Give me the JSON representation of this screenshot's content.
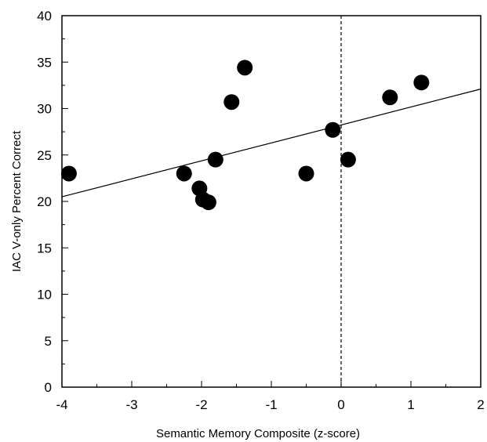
{
  "chart_data": {
    "type": "scatter",
    "title": "",
    "xlabel": "Semantic Memory Composite (z-score)",
    "ylabel": "IAC V-only Percent Correct",
    "xlim": [
      -4,
      2
    ],
    "ylim": [
      0,
      40
    ],
    "xticks": [
      "-4",
      "-3",
      "-2",
      "-1",
      "0",
      "1",
      "2"
    ],
    "yticks": [
      "0",
      "5",
      "10",
      "15",
      "20",
      "25",
      "30",
      "35",
      "40"
    ],
    "grid": false,
    "legend": "none",
    "marker_color": "#000000",
    "reference_line": {
      "x": 0,
      "style": "dashed"
    },
    "regression_line": {
      "x": [
        -4,
        2
      ],
      "y": [
        20.5,
        32.1
      ]
    },
    "points": [
      {
        "x": -3.9,
        "y": 23.0
      },
      {
        "x": -2.25,
        "y": 23.0
      },
      {
        "x": -2.03,
        "y": 21.4
      },
      {
        "x": -1.98,
        "y": 20.2
      },
      {
        "x": -1.9,
        "y": 19.9
      },
      {
        "x": -1.8,
        "y": 24.5
      },
      {
        "x": -1.57,
        "y": 30.7
      },
      {
        "x": -1.38,
        "y": 34.4
      },
      {
        "x": -0.5,
        "y": 23.0
      },
      {
        "x": -0.12,
        "y": 27.7
      },
      {
        "x": 0.1,
        "y": 24.5
      },
      {
        "x": 0.7,
        "y": 31.2
      },
      {
        "x": 1.15,
        "y": 32.8
      }
    ]
  }
}
